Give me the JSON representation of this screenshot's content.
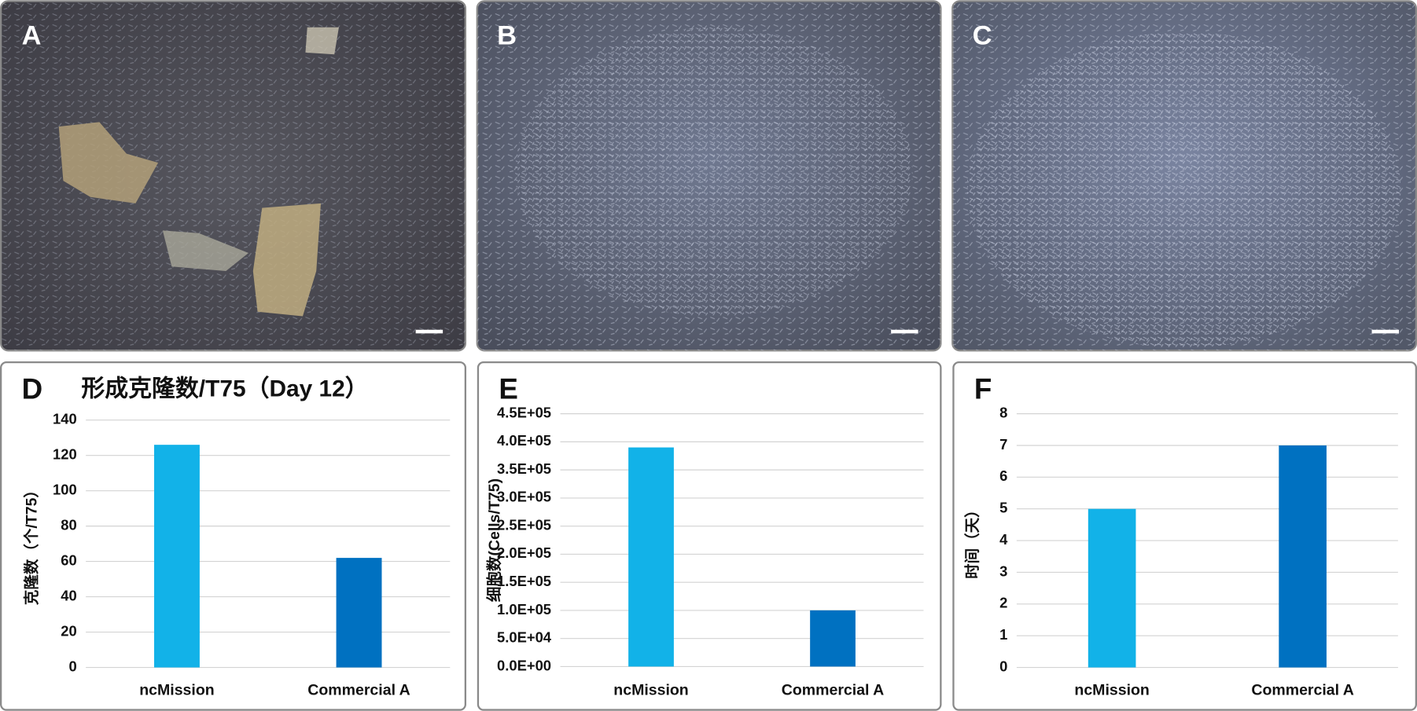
{
  "images": [
    {
      "label": "A"
    },
    {
      "label": "B"
    },
    {
      "label": "C"
    }
  ],
  "chart_data": [
    {
      "type": "bar",
      "panel": "D",
      "title": "形成克隆数/T75（Day 12）",
      "y_label": "克隆数（个/T75）",
      "categories": [
        "ncMission",
        "Commercial A"
      ],
      "values": [
        126,
        62
      ],
      "colors": [
        "#12b2e8",
        "#0071c1"
      ],
      "ylim": [
        0,
        140
      ],
      "yticks": [
        0,
        20,
        40,
        60,
        80,
        100,
        120,
        140
      ],
      "grid": true
    },
    {
      "type": "bar",
      "panel": "E",
      "y_label": "细胞数(Cells/T75)",
      "categories": [
        "ncMission",
        "Commercial A"
      ],
      "values": [
        390000,
        100000
      ],
      "colors": [
        "#12b2e8",
        "#0071c1"
      ],
      "ylim": [
        0,
        450000
      ],
      "yticks": [
        {
          "value": 0,
          "label": "0.0E+00"
        },
        {
          "value": 50000,
          "label": "5.0E+04"
        },
        {
          "value": 100000,
          "label": "1.0E+05"
        },
        {
          "value": 150000,
          "label": "1.5E+05"
        },
        {
          "value": 200000,
          "label": "2.0E+05"
        },
        {
          "value": 250000,
          "label": "2.5E+05"
        },
        {
          "value": 300000,
          "label": "3.0E+05"
        },
        {
          "value": 350000,
          "label": "3.5E+05"
        },
        {
          "value": 400000,
          "label": "4.0E+05"
        },
        {
          "value": 450000,
          "label": "4.5E+05"
        }
      ],
      "grid": true
    },
    {
      "type": "bar",
      "panel": "F",
      "y_label": "时间（天）",
      "categories": [
        "ncMission",
        "Commercial A"
      ],
      "values": [
        5,
        7
      ],
      "colors": [
        "#12b2e8",
        "#0071c1"
      ],
      "ylim": [
        0,
        8
      ],
      "yticks": [
        0,
        1,
        2,
        3,
        4,
        5,
        6,
        7,
        8
      ],
      "grid": true
    }
  ]
}
